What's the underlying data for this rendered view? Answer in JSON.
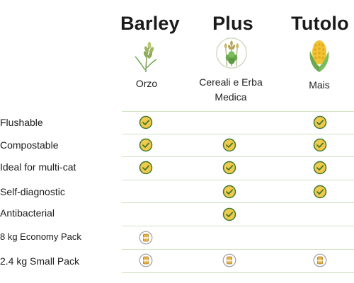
{
  "products": [
    {
      "name": "Barley",
      "subtitle_lines": [
        "Orzo"
      ],
      "icon": "barley-sprig-icon"
    },
    {
      "name": "Plus",
      "subtitle_lines": [
        "Cereali e Erba",
        "Medica"
      ],
      "icon": "cereal-clover-icon"
    },
    {
      "name": "Tutolo",
      "subtitle_lines": [
        "Mais"
      ],
      "icon": "corn-cob-icon"
    }
  ],
  "rows": [
    {
      "label": "Flushable",
      "marks": [
        "check",
        "",
        "check"
      ]
    },
    {
      "label": "Compostable",
      "marks": [
        "check",
        "check",
        "check"
      ]
    },
    {
      "label": "Ideal for multi-cat",
      "marks": [
        "check",
        "check",
        "check"
      ]
    },
    {
      "label": "Self-diagnostic",
      "marks": [
        "",
        "check",
        "check"
      ]
    },
    {
      "label": "Antibacterial",
      "marks": [
        "",
        "check",
        ""
      ]
    },
    {
      "label": "8 kg Economy Pack",
      "marks": [
        "pack",
        "",
        ""
      ]
    },
    {
      "label": "2.4 kg Small Pack",
      "marks": [
        "pack",
        "pack",
        "pack"
      ]
    }
  ],
  "colors": {
    "check_fill": "#f2c94c",
    "check_stroke": "#3e7a2c",
    "rule": "#cfe3c4",
    "leaf_green": "#6aa84f",
    "corn_yellow": "#f1c232"
  }
}
